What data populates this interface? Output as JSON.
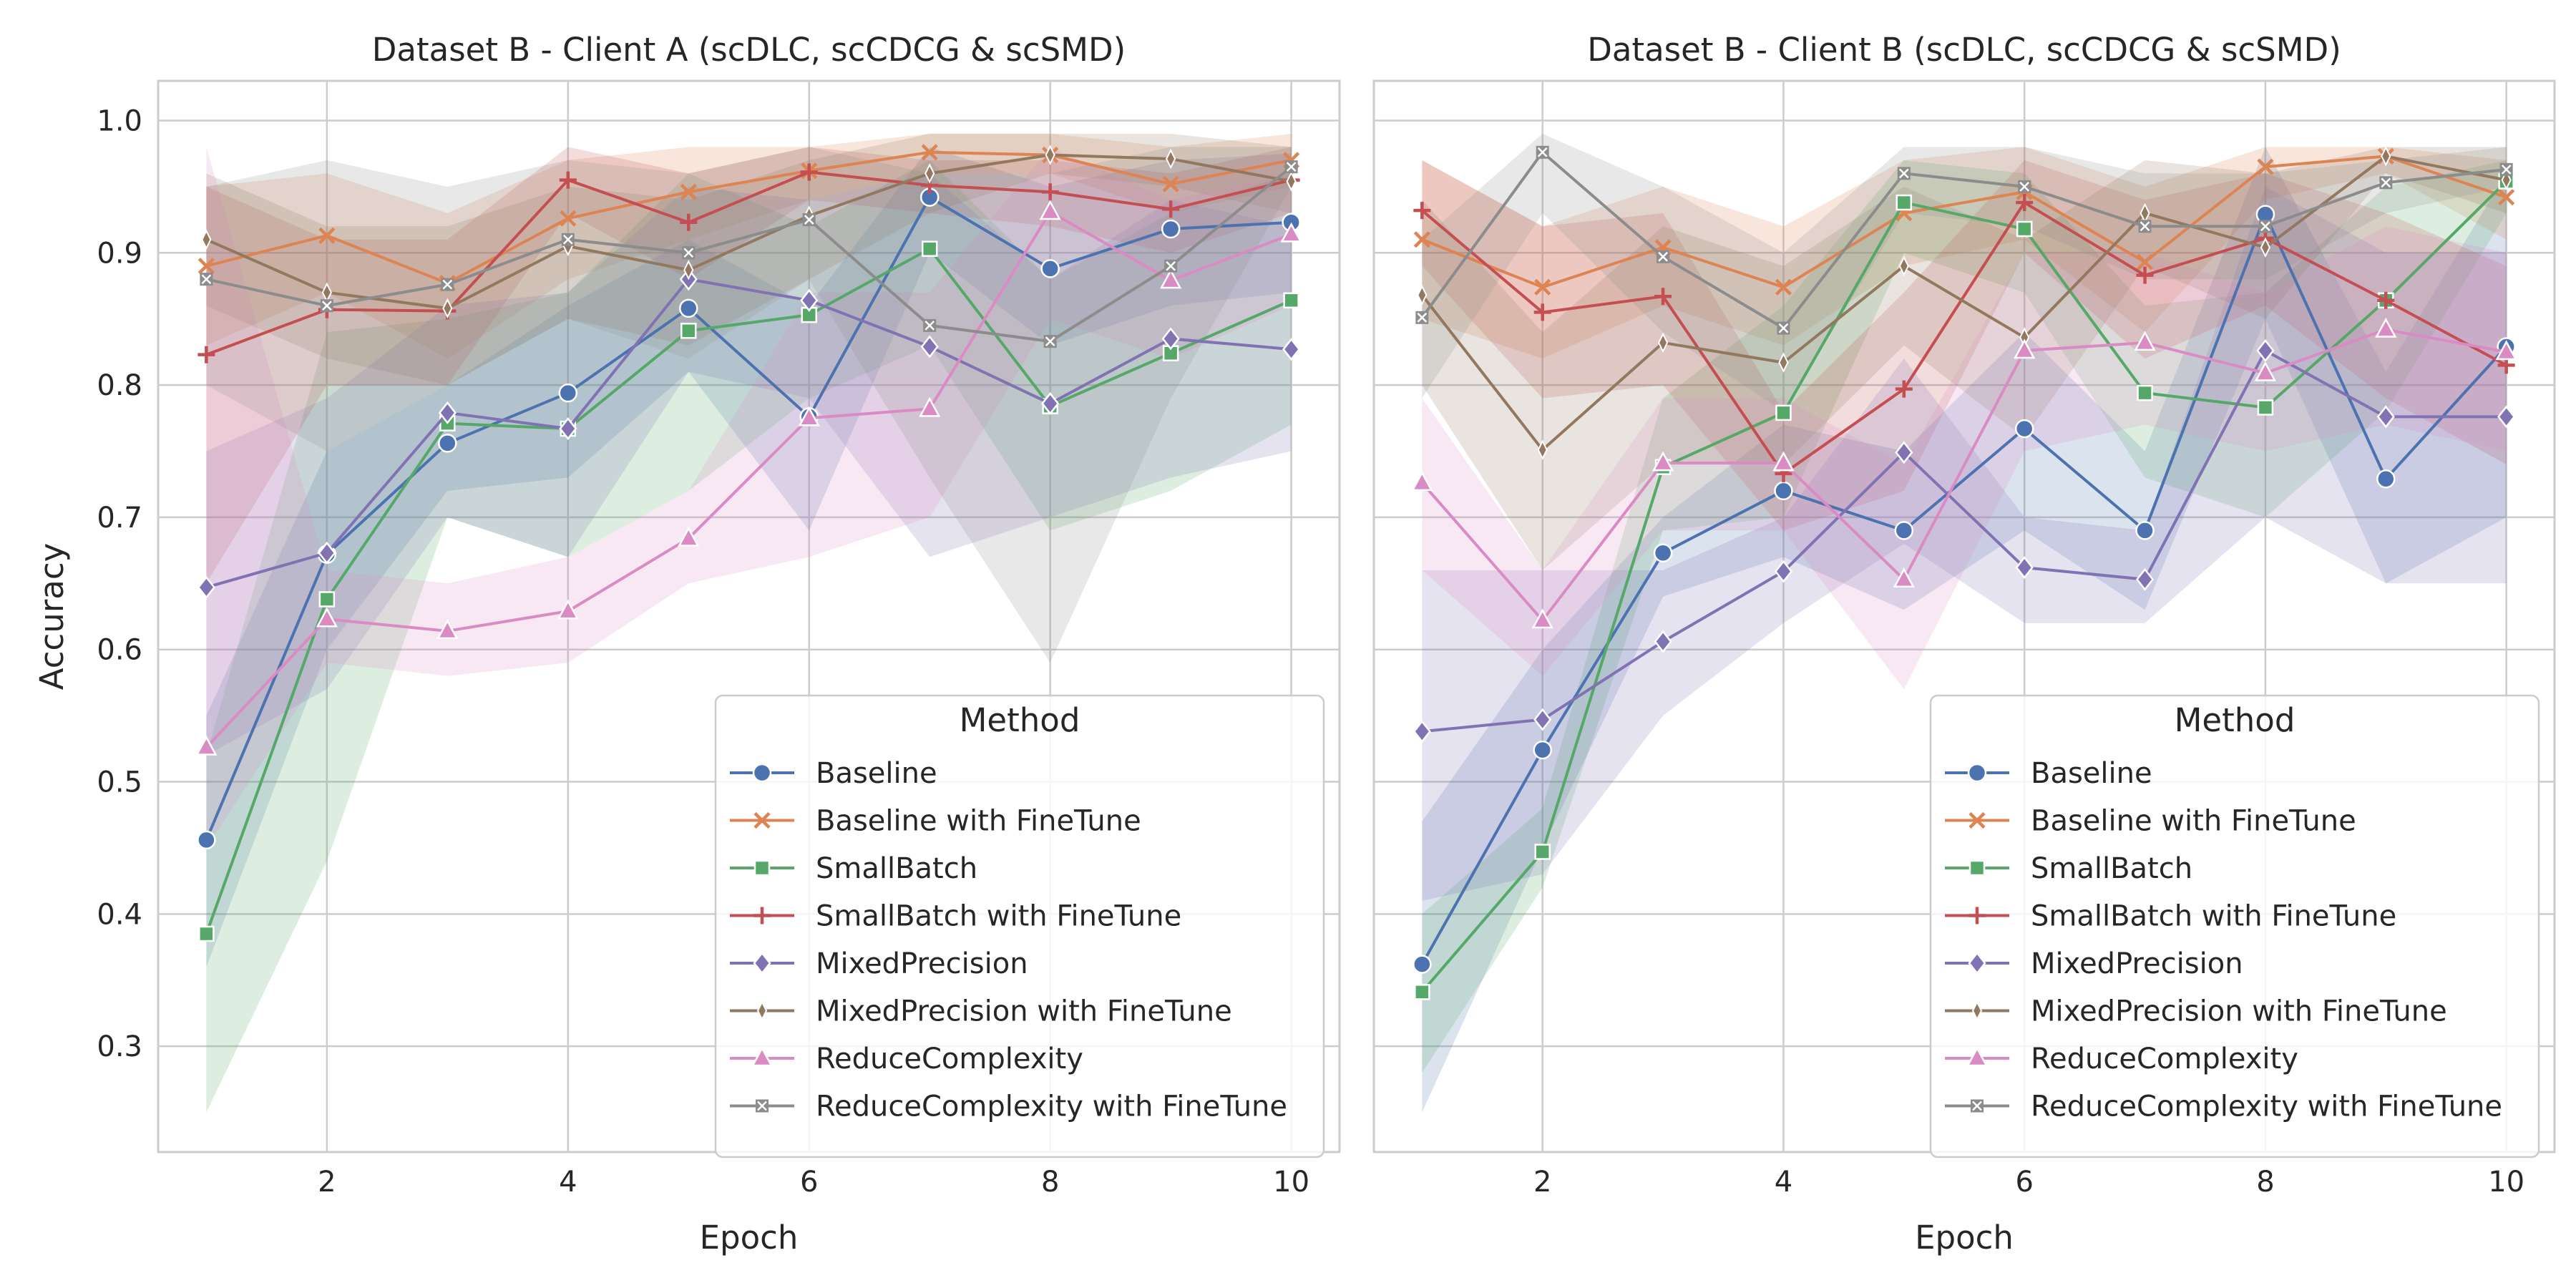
{
  "chart_data": [
    {
      "type": "line",
      "title": "Dataset B - Client A (scDLC, scCDCG & scSMD)",
      "xlabel": "Epoch",
      "ylabel": "Accuracy",
      "xlim": [
        0.6,
        10.4
      ],
      "ylim": [
        0.22,
        1.03
      ],
      "x_ticks": [
        2,
        4,
        6,
        8,
        10
      ],
      "y_ticks": [
        0.3,
        0.4,
        0.5,
        0.6,
        0.7,
        0.8,
        0.9,
        1.0
      ],
      "grid": true,
      "legend": {
        "title": "Method",
        "placement": "lower-right"
      },
      "x": [
        1,
        2,
        3,
        4,
        5,
        6,
        7,
        8,
        9,
        10
      ],
      "series": [
        {
          "name": "Baseline",
          "color": "#4c72b0",
          "marker": "circle",
          "values": [
            0.456,
            0.672,
            0.756,
            0.794,
            0.858,
            0.776,
            0.942,
            0.888,
            0.918,
            0.923
          ],
          "lower": [
            0.36,
            0.6,
            0.72,
            0.73,
            0.81,
            0.69,
            0.9,
            0.83,
            0.86,
            0.87
          ],
          "upper": [
            0.55,
            0.75,
            0.8,
            0.86,
            0.91,
            0.86,
            0.98,
            0.95,
            0.97,
            0.975
          ]
        },
        {
          "name": "Baseline with FineTune",
          "color": "#dd8452",
          "marker": "x",
          "values": [
            0.89,
            0.913,
            0.877,
            0.926,
            0.946,
            0.962,
            0.976,
            0.974,
            0.952,
            0.97
          ],
          "lower": [
            0.83,
            0.87,
            0.82,
            0.88,
            0.91,
            0.94,
            0.96,
            0.96,
            0.93,
            0.95
          ],
          "upper": [
            0.95,
            0.96,
            0.93,
            0.97,
            0.98,
            0.98,
            0.99,
            0.99,
            0.98,
            0.99
          ]
        },
        {
          "name": "SmallBatch",
          "color": "#55a868",
          "marker": "square",
          "values": [
            0.385,
            0.638,
            0.771,
            0.767,
            0.841,
            0.853,
            0.903,
            0.784,
            0.824,
            0.864
          ],
          "lower": [
            0.25,
            0.44,
            0.7,
            0.67,
            0.72,
            0.79,
            0.83,
            0.69,
            0.72,
            0.77
          ],
          "upper": [
            0.52,
            0.84,
            0.85,
            0.87,
            0.96,
            0.92,
            0.97,
            0.88,
            0.93,
            0.96
          ]
        },
        {
          "name": "SmallBatch with FineTune",
          "color": "#c44e52",
          "marker": "plus",
          "values": [
            0.823,
            0.857,
            0.856,
            0.955,
            0.923,
            0.961,
            0.951,
            0.946,
            0.933,
            0.955
          ],
          "lower": [
            0.65,
            0.8,
            0.8,
            0.93,
            0.88,
            0.94,
            0.93,
            0.92,
            0.9,
            0.93
          ],
          "upper": [
            0.95,
            0.91,
            0.91,
            0.98,
            0.96,
            0.98,
            0.97,
            0.97,
            0.96,
            0.98
          ]
        },
        {
          "name": "MixedPrecision",
          "color": "#8172b3",
          "marker": "diamond",
          "values": [
            0.647,
            0.673,
            0.779,
            0.767,
            0.88,
            0.864,
            0.829,
            0.786,
            0.835,
            0.827
          ],
          "lower": [
            0.52,
            0.57,
            0.7,
            0.67,
            0.81,
            0.79,
            0.67,
            0.7,
            0.73,
            0.75
          ],
          "upper": [
            0.75,
            0.79,
            0.86,
            0.87,
            0.95,
            0.94,
            0.96,
            0.88,
            0.94,
            0.92
          ]
        },
        {
          "name": "MixedPrecision with FineTune",
          "color": "#937860",
          "marker": "thin-diamond",
          "values": [
            0.91,
            0.87,
            0.858,
            0.905,
            0.887,
            0.928,
            0.96,
            0.974,
            0.971,
            0.954
          ],
          "lower": [
            0.86,
            0.82,
            0.8,
            0.85,
            0.83,
            0.88,
            0.93,
            0.96,
            0.95,
            0.93
          ],
          "upper": [
            0.96,
            0.92,
            0.92,
            0.95,
            0.94,
            0.97,
            0.99,
            0.99,
            0.99,
            0.98
          ]
        },
        {
          "name": "ReduceComplexity",
          "color": "#da8bc3",
          "marker": "triangle",
          "values": [
            0.526,
            0.623,
            0.614,
            0.629,
            0.684,
            0.775,
            0.782,
            0.931,
            0.879,
            0.914
          ],
          "lower": [
            0.45,
            0.59,
            0.58,
            0.59,
            0.65,
            0.67,
            0.7,
            0.85,
            0.82,
            0.86
          ],
          "upper": [
            0.98,
            0.66,
            0.65,
            0.67,
            0.72,
            0.87,
            0.87,
            0.98,
            0.94,
            0.96
          ]
        },
        {
          "name": "ReduceComplexity with FineTune",
          "color": "#8c8c8c",
          "marker": "x-small",
          "values": [
            0.88,
            0.86,
            0.876,
            0.91,
            0.9,
            0.925,
            0.845,
            0.833,
            0.89,
            0.965
          ],
          "lower": [
            0.8,
            0.75,
            0.8,
            0.85,
            0.82,
            0.88,
            0.73,
            0.59,
            0.79,
            0.95
          ],
          "upper": [
            0.95,
            0.97,
            0.95,
            0.97,
            0.96,
            0.98,
            0.96,
            0.96,
            0.98,
            0.98
          ]
        }
      ]
    },
    {
      "type": "line",
      "title": "Dataset B - Client B (scDLC, scCDCG & scSMD)",
      "xlabel": "Epoch",
      "ylabel": "",
      "xlim": [
        0.6,
        10.4
      ],
      "ylim": [
        0.22,
        1.03
      ],
      "x_ticks": [
        2,
        4,
        6,
        8,
        10
      ],
      "y_ticks": [
        0.3,
        0.4,
        0.5,
        0.6,
        0.7,
        0.8,
        0.9,
        1.0
      ],
      "grid": true,
      "legend": {
        "title": "Method",
        "placement": "lower-right"
      },
      "x": [
        1,
        2,
        3,
        4,
        5,
        6,
        7,
        8,
        9,
        10
      ],
      "series": [
        {
          "name": "Baseline",
          "color": "#4c72b0",
          "marker": "circle",
          "values": [
            0.362,
            0.524,
            0.673,
            0.72,
            0.69,
            0.767,
            0.69,
            0.929,
            0.729,
            0.829
          ],
          "lower": [
            0.25,
            0.45,
            0.64,
            0.67,
            0.63,
            0.69,
            0.63,
            0.85,
            0.65,
            0.7
          ],
          "upper": [
            0.47,
            0.6,
            0.7,
            0.77,
            0.75,
            0.84,
            0.75,
            0.98,
            0.81,
            0.96
          ]
        },
        {
          "name": "Baseline with FineTune",
          "color": "#dd8452",
          "marker": "x",
          "values": [
            0.91,
            0.874,
            0.904,
            0.874,
            0.93,
            0.946,
            0.893,
            0.965,
            0.973,
            0.942
          ],
          "lower": [
            0.85,
            0.82,
            0.86,
            0.83,
            0.89,
            0.91,
            0.84,
            0.94,
            0.96,
            0.91
          ],
          "upper": [
            0.97,
            0.92,
            0.95,
            0.92,
            0.97,
            0.98,
            0.95,
            0.98,
            0.98,
            0.97
          ]
        },
        {
          "name": "SmallBatch",
          "color": "#55a868",
          "marker": "square",
          "values": [
            0.341,
            0.447,
            0.738,
            0.779,
            0.938,
            0.918,
            0.794,
            0.783,
            0.864,
            0.954
          ],
          "lower": [
            0.28,
            0.42,
            0.69,
            0.7,
            0.9,
            0.87,
            0.73,
            0.7,
            0.78,
            0.93
          ],
          "upper": [
            0.4,
            0.48,
            0.79,
            0.86,
            0.97,
            0.96,
            0.86,
            0.87,
            0.95,
            0.97
          ]
        },
        {
          "name": "SmallBatch with FineTune",
          "color": "#c44e52",
          "marker": "plus",
          "values": [
            0.932,
            0.855,
            0.867,
            0.733,
            0.797,
            0.938,
            0.883,
            0.911,
            0.864,
            0.815
          ],
          "lower": [
            0.89,
            0.79,
            0.8,
            0.69,
            0.72,
            0.9,
            0.82,
            0.86,
            0.79,
            0.74
          ],
          "upper": [
            0.97,
            0.92,
            0.93,
            0.78,
            0.87,
            0.97,
            0.94,
            0.96,
            0.93,
            0.89
          ]
        },
        {
          "name": "MixedPrecision",
          "color": "#8172b3",
          "marker": "diamond",
          "values": [
            0.538,
            0.547,
            0.606,
            0.659,
            0.749,
            0.662,
            0.653,
            0.826,
            0.776,
            0.776
          ],
          "lower": [
            0.41,
            0.43,
            0.55,
            0.62,
            0.68,
            0.62,
            0.62,
            0.7,
            0.65,
            0.65
          ],
          "upper": [
            0.66,
            0.66,
            0.66,
            0.7,
            0.82,
            0.7,
            0.69,
            0.95,
            0.9,
            0.9
          ]
        },
        {
          "name": "MixedPrecision with FineTune",
          "color": "#937860",
          "marker": "thin-diamond",
          "values": [
            0.868,
            0.751,
            0.832,
            0.817,
            0.89,
            0.836,
            0.93,
            0.904,
            0.973,
            0.955
          ],
          "lower": [
            0.8,
            0.66,
            0.74,
            0.74,
            0.83,
            0.76,
            0.89,
            0.85,
            0.96,
            0.93
          ],
          "upper": [
            0.94,
            0.84,
            0.92,
            0.89,
            0.95,
            0.91,
            0.97,
            0.96,
            0.98,
            0.98
          ]
        },
        {
          "name": "ReduceComplexity",
          "color": "#da8bc3",
          "marker": "triangle",
          "values": [
            0.726,
            0.622,
            0.741,
            0.741,
            0.653,
            0.826,
            0.832,
            0.809,
            0.842,
            0.825
          ],
          "lower": [
            0.66,
            0.58,
            0.69,
            0.69,
            0.57,
            0.75,
            0.77,
            0.75,
            0.77,
            0.75
          ],
          "upper": [
            0.79,
            0.66,
            0.79,
            0.79,
            0.74,
            0.9,
            0.9,
            0.87,
            0.92,
            0.9
          ]
        },
        {
          "name": "ReduceComplexity with FineTune",
          "color": "#8c8c8c",
          "marker": "x-small",
          "values": [
            0.851,
            0.976,
            0.897,
            0.843,
            0.96,
            0.95,
            0.92,
            0.92,
            0.953,
            0.963
          ],
          "lower": [
            0.79,
            0.93,
            0.84,
            0.78,
            0.93,
            0.92,
            0.88,
            0.88,
            0.93,
            0.95
          ],
          "upper": [
            0.91,
            0.99,
            0.95,
            0.9,
            0.98,
            0.98,
            0.96,
            0.96,
            0.97,
            0.98
          ]
        }
      ]
    }
  ]
}
